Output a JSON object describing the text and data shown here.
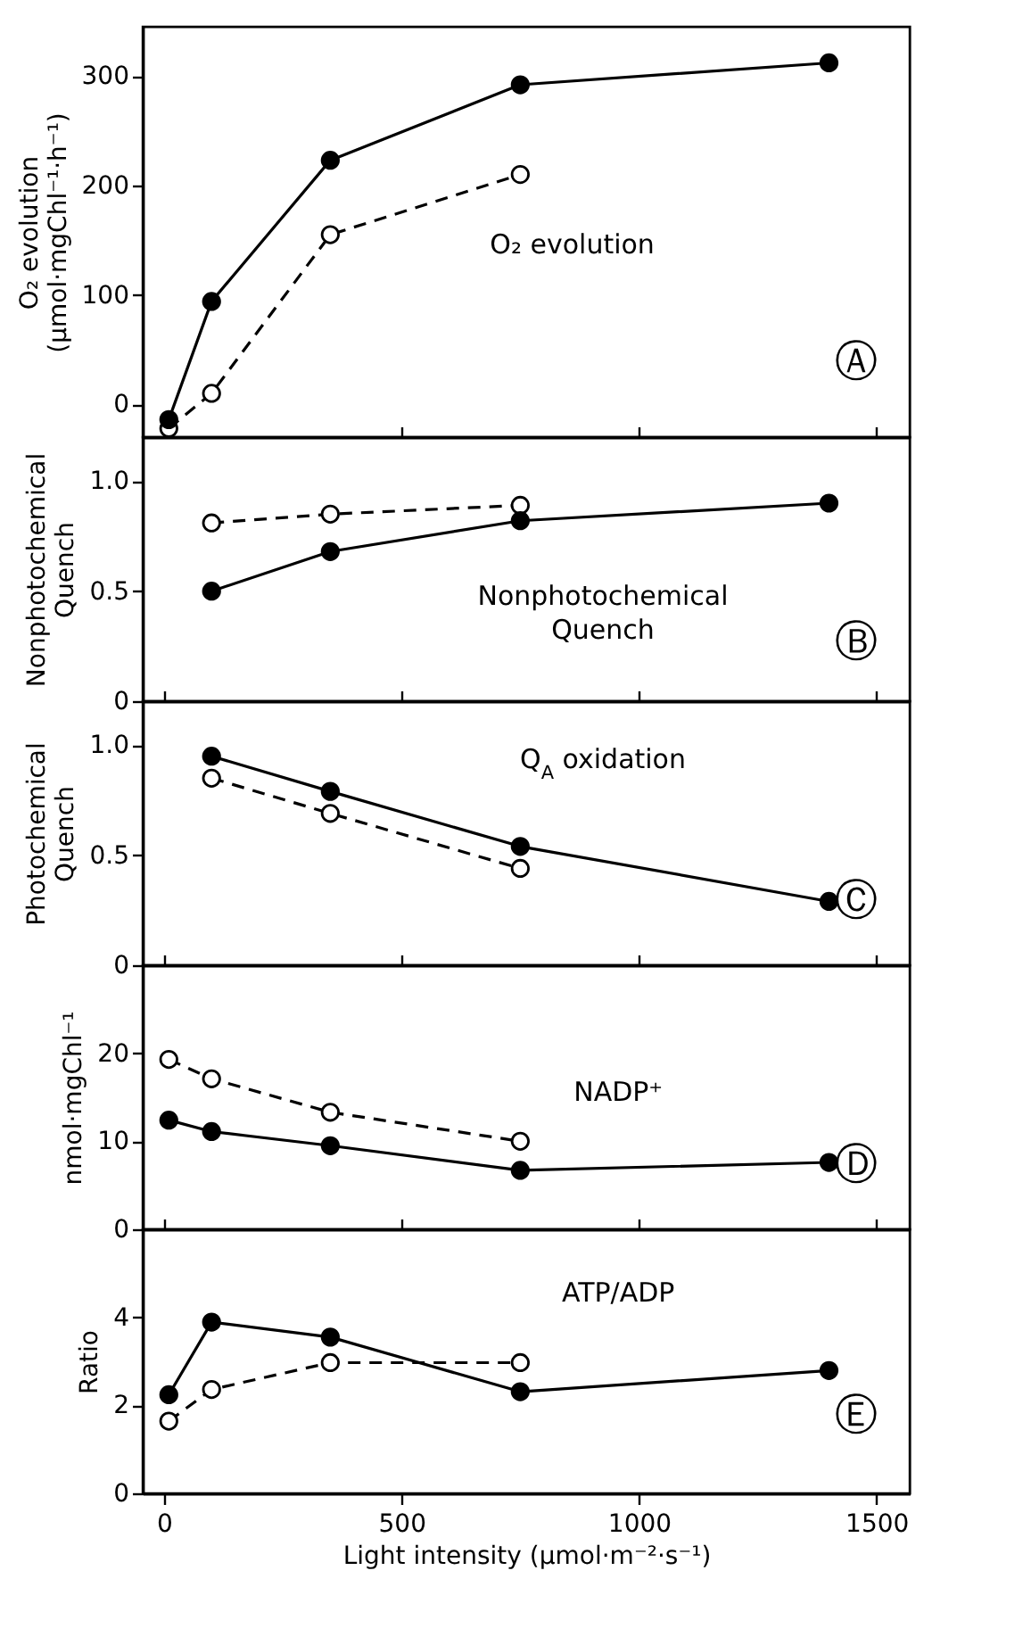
{
  "chart_data": [
    {
      "type": "line",
      "ylabel": "O₂ evolution\n(µmol·mgChl⁻¹·h⁻¹)",
      "annotations": [
        "O₂  evolution",
        "Ⓐ"
      ],
      "x": [
        10,
        100,
        350,
        750,
        1400
      ],
      "xlim": [
        -45,
        1570
      ],
      "xticks": [
        0,
        500,
        1000,
        1500
      ],
      "ylim": [
        -30,
        345
      ],
      "yticks": [
        0,
        100,
        200,
        300
      ],
      "tick_labels": "y",
      "marker": "circle",
      "series": [
        {
          "color": "#000000",
          "line_style": "solid",
          "values": [
            -14,
            94,
            223,
            292,
            312
          ]
        },
        {
          "color": "#000000",
          "line_style": "dashed",
          "x": [
            10,
            100,
            350,
            750
          ],
          "values": [
            -22,
            10,
            155,
            210
          ]
        }
      ]
    },
    {
      "type": "line",
      "ylabel": "Nonphotochemical\nQuench",
      "annotations": [
        "Nonphotochemical\n             Quench",
        "Ⓑ"
      ],
      "x": [
        100,
        350,
        750,
        1400
      ],
      "xlim": [
        -45,
        1570
      ],
      "xticks": [
        0,
        500,
        1000,
        1500
      ],
      "ylim": [
        0,
        1.2
      ],
      "yticks": [
        0,
        0.5,
        {
          "value": 1,
          "label": "1.0"
        }
      ],
      "tick_labels": "y",
      "marker": "circle",
      "series": [
        {
          "color": "#000000",
          "line_style": "solid",
          "values": [
            0.5,
            0.68,
            0.82,
            0.9
          ]
        },
        {
          "color": "#000000",
          "line_style": "dashed",
          "x": [
            100,
            350,
            750
          ],
          "values": [
            0.81,
            0.85,
            0.89
          ]
        }
      ]
    },
    {
      "type": "line",
      "ylabel": "Photochemical\nQuench",
      "annotations": [
        "Q$_{A}$ oxidation",
        "Ⓒ"
      ],
      "x": [
        100,
        350,
        750,
        1400
      ],
      "xlim": [
        -45,
        1570
      ],
      "xticks": [
        0,
        500,
        1000,
        1500
      ],
      "ylim": [
        0,
        1.2
      ],
      "yticks": [
        0,
        0.5,
        {
          "value": 1,
          "label": "1.0"
        }
      ],
      "tick_labels": "y",
      "marker": "circle",
      "series": [
        {
          "color": "#000000",
          "line_style": "solid",
          "values": [
            0.95,
            0.79,
            0.54,
            0.29
          ]
        },
        {
          "color": "#000000",
          "line_style": "dashed",
          "x": [
            100,
            350,
            750
          ],
          "values": [
            0.85,
            0.69,
            0.44
          ]
        }
      ]
    },
    {
      "type": "line",
      "ylabel": "nmol·mgChl⁻¹",
      "annotations": [
        "NADP⁺",
        "Ⓓ"
      ],
      "x": [
        10,
        100,
        350,
        750,
        1400
      ],
      "xlim": [
        -45,
        1570
      ],
      "xticks": [
        0,
        500,
        1000,
        1500
      ],
      "ylim": [
        0,
        30
      ],
      "yticks": [
        0,
        10,
        20
      ],
      "tick_labels": "y",
      "marker": "circle",
      "series": [
        {
          "color": "#000000",
          "line_style": "solid",
          "values": [
            12.4,
            11.1,
            9.5,
            6.7,
            7.6
          ]
        },
        {
          "color": "#000000",
          "line_style": "dashed",
          "x": [
            10,
            100,
            350,
            750
          ],
          "values": [
            19.3,
            17.1,
            13.3,
            10.0
          ]
        }
      ]
    },
    {
      "type": "line",
      "xlabel": "Light intensity (µmol·m⁻²·s⁻¹)",
      "ylabel": "Ratio",
      "annotations": [
        "ATP/ADP",
        "Ⓔ"
      ],
      "x": [
        10,
        100,
        350,
        750,
        1400
      ],
      "xlim": [
        -45,
        1570
      ],
      "xticks": [
        0,
        500,
        1000,
        1500
      ],
      "ylim": [
        0,
        6
      ],
      "yticks": [
        0,
        2,
        4
      ],
      "marker": "circle",
      "series": [
        {
          "color": "#000000",
          "line_style": "solid",
          "values": [
            2.24,
            3.89,
            3.55,
            2.31,
            2.79
          ]
        },
        {
          "color": "#000000",
          "line_style": "dashed",
          "x": [
            10,
            100,
            350,
            750
          ],
          "values": [
            1.64,
            2.36,
            2.97,
            2.97
          ]
        }
      ]
    }
  ]
}
